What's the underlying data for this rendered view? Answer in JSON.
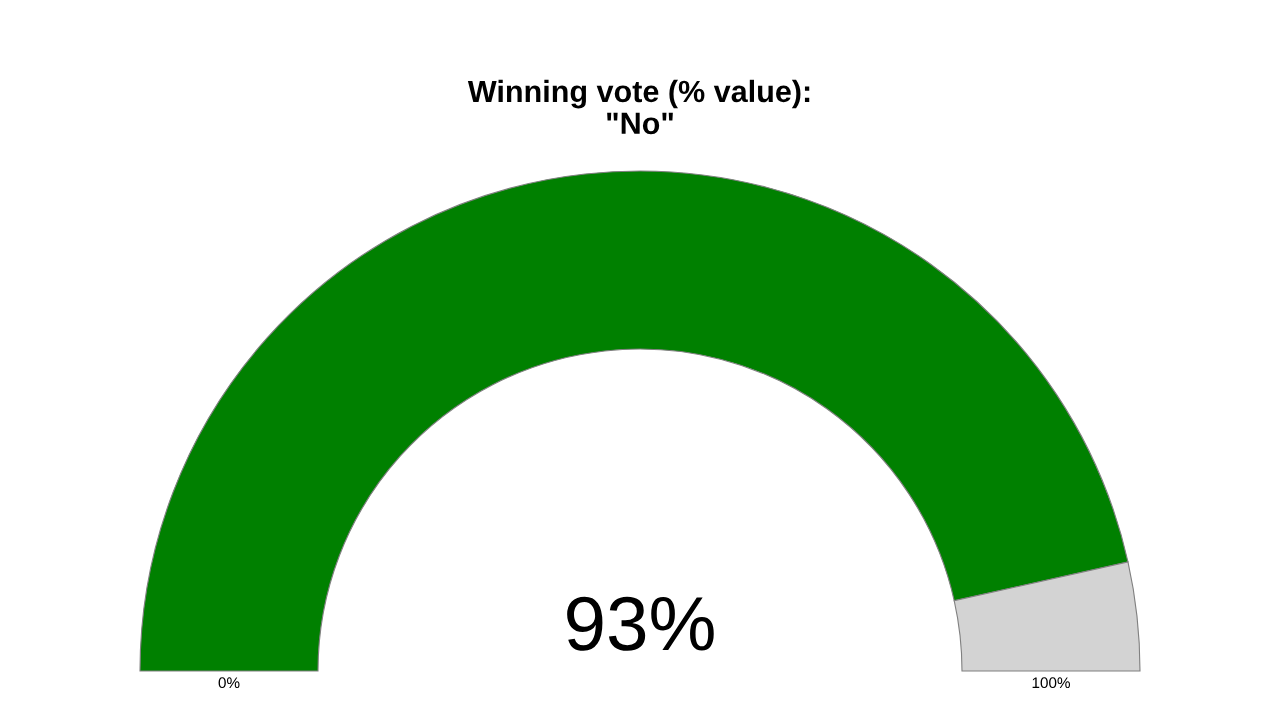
{
  "chart_data": {
    "type": "donut",
    "title": "Winning vote (% value):\n\"No\"",
    "categories": [
      null,
      null
    ],
    "values": [
      93,
      7
    ],
    "colors": [
      "#008000",
      "#d3d3d3"
    ],
    "value_labels": [
      "93%",
      null
    ],
    "annotations": [
      "0%",
      "100%"
    ]
  }
}
